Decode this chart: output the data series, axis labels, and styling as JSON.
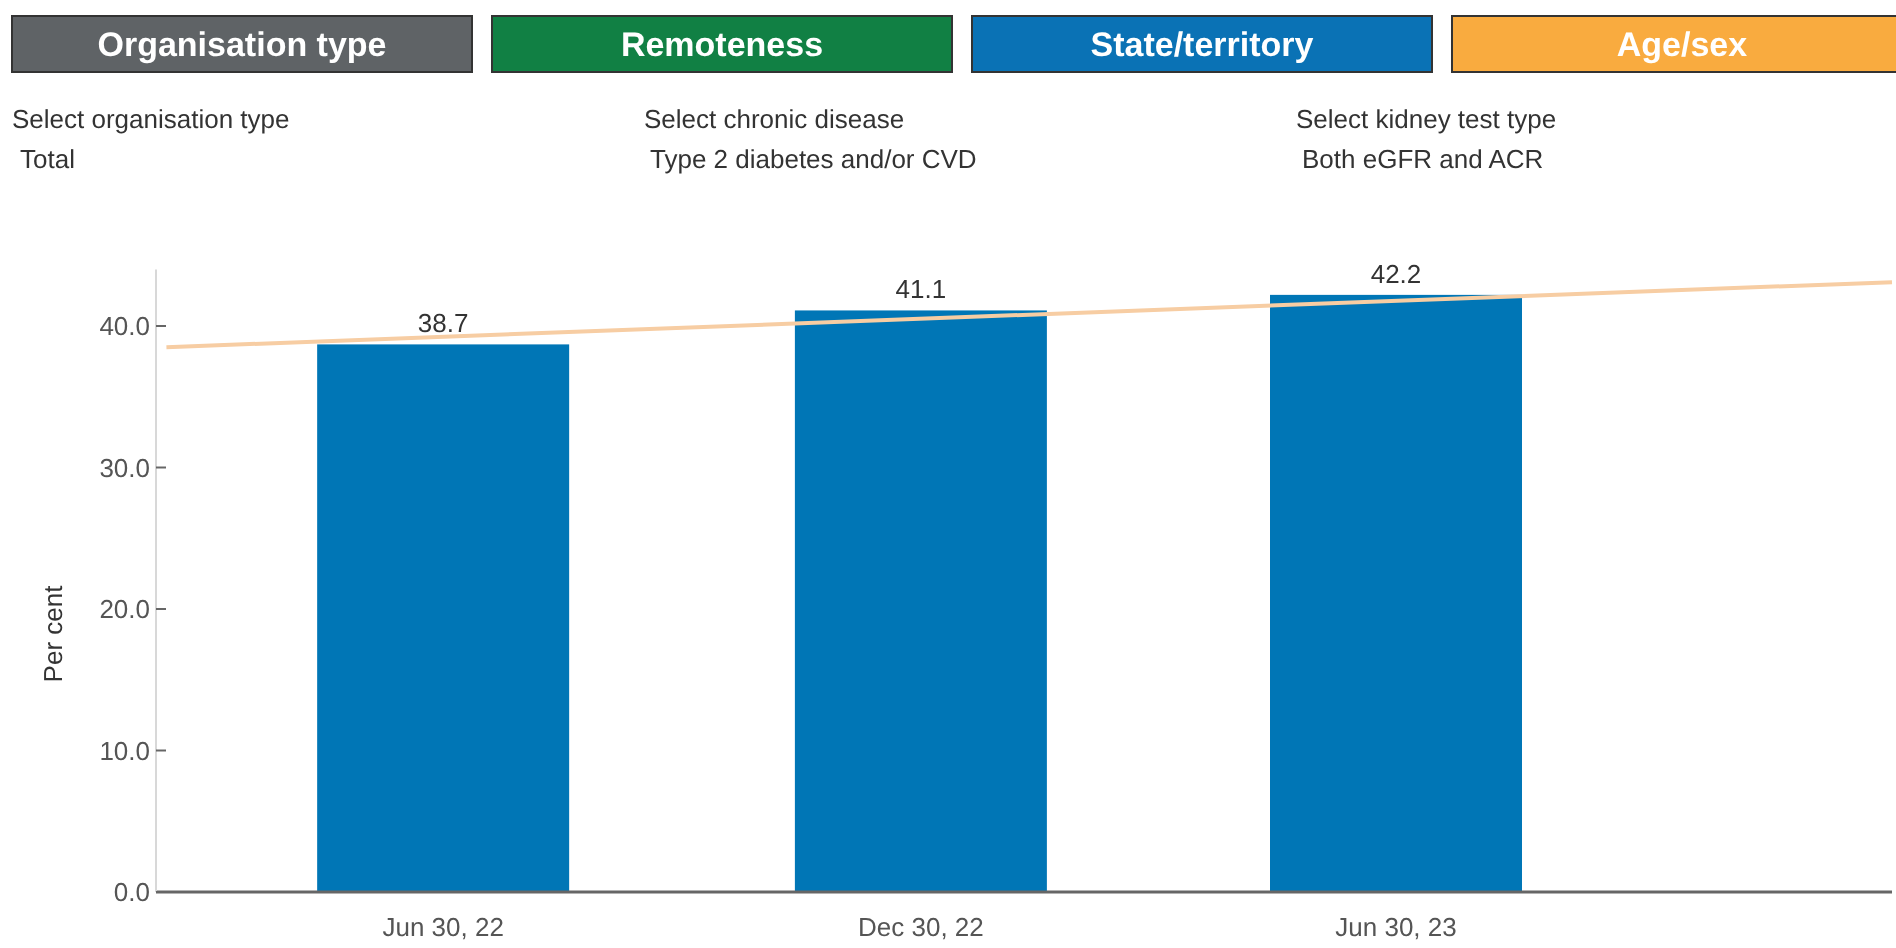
{
  "chart_data": {
    "type": "bar",
    "ylabel": "Per cent",
    "annotations": [
      "Organisation type",
      "Remoteness",
      "State/territory",
      "Age/sex",
      "Select organisation type",
      "Total",
      "Select chronic disease",
      "Type 2 diabetes and/or CVD",
      "Select kidney test type",
      "Both eGFR and ACR"
    ],
    "xlim": [
      "2022-03-12",
      "2024-01-06"
    ],
    "xticks": [
      {
        "value": "2022-06-30",
        "label": "Jun 30, 22"
      },
      {
        "value": "2022-12-30",
        "label": "Dec 30, 22"
      },
      {
        "value": "2023-06-30",
        "label": "Jun 30, 23"
      }
    ],
    "ylim": [
      0,
      44
    ],
    "yticks": [
      {
        "value": 0,
        "label": "0.0"
      },
      {
        "value": 10,
        "label": "10.0"
      },
      {
        "value": 20,
        "label": "20.0"
      },
      {
        "value": 30,
        "label": "30.0"
      },
      {
        "value": 40,
        "label": "40.0"
      }
    ],
    "series": [
      {
        "color": "#0076b6",
        "x": [
          "2022-06-30",
          "2022-12-30",
          "2023-06-30"
        ],
        "values": [
          38.7,
          41.1,
          42.2
        ],
        "value_labels": [
          "38.7",
          "41.1",
          "42.2"
        ]
      },
      {
        "type": "line",
        "color": "#f7cda3",
        "x": [
          "2022-03-16",
          "2024-01-06"
        ],
        "values": [
          38.5,
          43.1
        ]
      }
    ],
    "grid": false
  }
}
